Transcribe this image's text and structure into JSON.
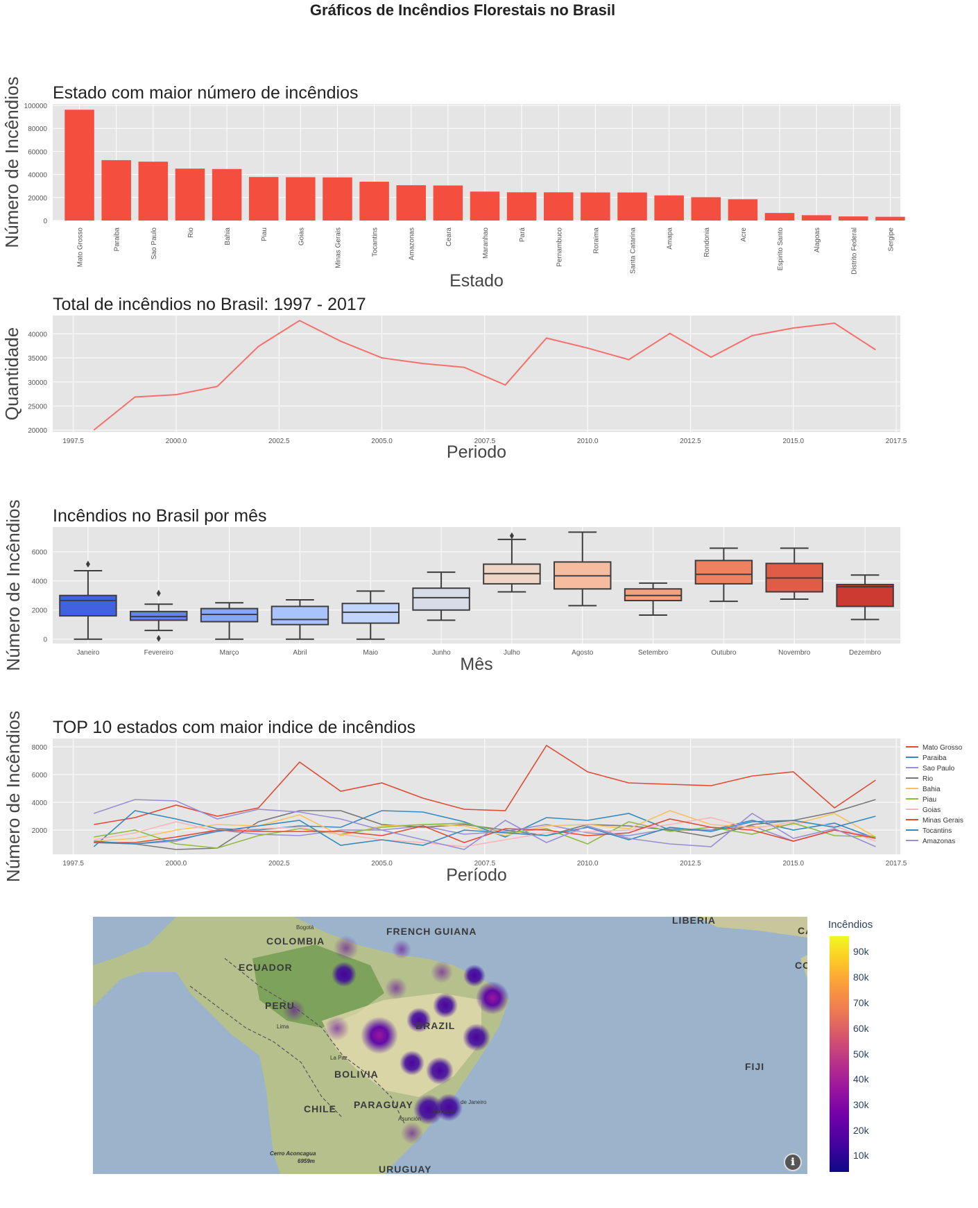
{
  "page": {
    "suptitle": "Gráficos de Incêndios Florestais no Brasil"
  },
  "chart_data": [
    {
      "type": "bar",
      "title": "Estado com maior número de incêndios",
      "xlabel": "Estado",
      "ylabel": "Número de Incêndios",
      "ylim": [
        0,
        100000
      ],
      "yticks": [
        0,
        20000,
        40000,
        60000,
        80000,
        100000
      ],
      "color": "#f44e3f",
      "categories": [
        "Mato Grosso",
        "Paraiba",
        "Sao Paulo",
        "Rio",
        "Bahia",
        "Piau",
        "Goias",
        "Minas Gerais",
        "Tocantins",
        "Amazonas",
        "Ceara",
        "Maranhao",
        "Pará",
        "Pernambuco",
        "Roraima",
        "Santa Catarina",
        "Amapa",
        "Rondonia",
        "Acre",
        "Espirito Santo",
        "Alagoas",
        "Distrito Federal",
        "Sergipe"
      ],
      "values": [
        96246,
        52436,
        51122,
        45094,
        44746,
        37803,
        37641,
        37476,
        33708,
        30650,
        30429,
        25130,
        24512,
        24498,
        24386,
        24360,
        21832,
        20239,
        18465,
        6547,
        4606,
        3562,
        3238
      ]
    },
    {
      "type": "line",
      "title": "Total de incêndios no Brasil: 1997 - 2017",
      "xlabel": "Periodo",
      "ylabel": "Quantidade",
      "xlim": [
        1997.0,
        2017.6
      ],
      "ylim": [
        19600,
        43800
      ],
      "xticks": [
        "1997.5",
        "2000.0",
        "2002.5",
        "2005.0",
        "2007.5",
        "2010.0",
        "2012.5",
        "2015.0",
        "2017.5"
      ],
      "yticks": [
        20000,
        25000,
        30000,
        35000,
        40000
      ],
      "color": "#f5706a",
      "x": [
        1998,
        1999,
        2000,
        2001,
        2002,
        2003,
        2004,
        2005,
        2006,
        2007,
        2008,
        2009,
        2010,
        2011,
        2012,
        2013,
        2014,
        2015,
        2016,
        2017
      ],
      "y": [
        20014,
        26883,
        27352,
        29071,
        37391,
        42760,
        38454,
        35004,
        33832,
        33037,
        29379,
        39117,
        37037,
        34634,
        40084,
        35146,
        39621,
        41208,
        42212,
        36685
      ]
    },
    {
      "type": "box",
      "title": "Incêndios no Brasil por mês",
      "xlabel": "Mês",
      "ylabel": "Número de Incêndios",
      "ylim": [
        -300,
        7700
      ],
      "yticks": [
        0,
        2000,
        4000,
        6000
      ],
      "categories": [
        "Janeiro",
        "Fevereiro",
        "Março",
        "Abril",
        "Maio",
        "Junho",
        "Julho",
        "Agosto",
        "Setembro",
        "Outubro",
        "Novembro",
        "Dezembro"
      ],
      "colors": [
        "#4062e0",
        "#6283f0",
        "#86a8fc",
        "#a9c4fd",
        "#c1d4fb",
        "#d8dce9",
        "#efd5c5",
        "#f5bca0",
        "#f6a07f",
        "#ee815f",
        "#e15c46",
        "#cc3a32"
      ],
      "stats": [
        {
          "min": 0,
          "q1": 1600,
          "median": 2650,
          "q3": 3000,
          "max": 4700,
          "outliers": [
            5150
          ]
        },
        {
          "min": 600,
          "q1": 1300,
          "median": 1550,
          "q3": 1900,
          "max": 2400,
          "outliers": [
            3150,
            50
          ]
        },
        {
          "min": 0,
          "q1": 1200,
          "median": 1700,
          "q3": 2100,
          "max": 2500,
          "outliers": []
        },
        {
          "min": 0,
          "q1": 1000,
          "median": 1350,
          "q3": 2250,
          "max": 2700,
          "outliers": []
        },
        {
          "min": 0,
          "q1": 1100,
          "median": 1850,
          "q3": 2450,
          "max": 3300,
          "outliers": []
        },
        {
          "min": 1300,
          "q1": 2000,
          "median": 2850,
          "q3": 3500,
          "max": 4600,
          "outliers": []
        },
        {
          "min": 3250,
          "q1": 3800,
          "median": 4500,
          "q3": 5150,
          "max": 6850,
          "outliers": [
            7100
          ]
        },
        {
          "min": 2300,
          "q1": 3450,
          "median": 4350,
          "q3": 5300,
          "max": 7350,
          "outliers": []
        },
        {
          "min": 1650,
          "q1": 2650,
          "median": 3000,
          "q3": 3450,
          "max": 3850,
          "outliers": []
        },
        {
          "min": 2600,
          "q1": 3800,
          "median": 4450,
          "q3": 5400,
          "max": 6250,
          "outliers": []
        },
        {
          "min": 2750,
          "q1": 3250,
          "median": 4200,
          "q3": 5200,
          "max": 6250,
          "outliers": []
        },
        {
          "min": 1350,
          "q1": 2250,
          "median": 3600,
          "q3": 3750,
          "max": 4400,
          "outliers": []
        }
      ]
    },
    {
      "type": "line",
      "title": "TOP 10 estados com maior indice de incêndios",
      "xlabel": "Período",
      "ylabel": "Número de Incêndios",
      "xlim": [
        1997.0,
        2017.6
      ],
      "ylim": [
        250,
        8600
      ],
      "xticks": [
        "1997.5",
        "2000.0",
        "2002.5",
        "2005.0",
        "2007.5",
        "2010.0",
        "2012.5",
        "2015.0",
        "2017.5"
      ],
      "yticks": [
        2000,
        4000,
        6000,
        8000
      ],
      "legend_position": "right",
      "x": [
        1998,
        1999,
        2000,
        2001,
        2002,
        2003,
        2004,
        2005,
        2006,
        2007,
        2008,
        2009,
        2010,
        2011,
        2012,
        2013,
        2014,
        2015,
        2016,
        2017
      ],
      "series": [
        {
          "name": "Mato Grosso",
          "color": "#e24a33",
          "values": [
            2400,
            2900,
            3800,
            3000,
            3600,
            6900,
            4800,
            5400,
            4300,
            3500,
            3400,
            8100,
            6200,
            5400,
            5300,
            5200,
            5900,
            6200,
            3600,
            5600
          ]
        },
        {
          "name": "Paraiba",
          "color": "#348abd",
          "values": [
            800,
            3400,
            2800,
            2100,
            2000,
            2300,
            2200,
            3400,
            3300,
            2600,
            1500,
            2900,
            2700,
            3200,
            2000,
            2000,
            2700,
            2000,
            2500,
            1400
          ]
        },
        {
          "name": "Sao Paulo",
          "color": "#988ed5",
          "values": [
            1100,
            1000,
            1200,
            2000,
            1700,
            1600,
            2000,
            2000,
            2300,
            1700,
            1900,
            2400,
            1800,
            1600,
            2100,
            2000,
            2300,
            1200,
            2000,
            1500
          ]
        },
        {
          "name": "Rio",
          "color": "#777777",
          "values": [
            1100,
            1000,
            600,
            700,
            2600,
            3400,
            3400,
            2400,
            2200,
            2400,
            2000,
            1600,
            2400,
            2300,
            2000,
            1500,
            2400,
            2700,
            3300,
            4200
          ]
        },
        {
          "name": "Bahia",
          "color": "#fbc15e",
          "values": [
            1200,
            1400,
            2000,
            2400,
            2300,
            3100,
            1600,
            2300,
            2400,
            2300,
            1600,
            2300,
            2400,
            2100,
            3400,
            2400,
            2200,
            2400,
            3200,
            1500
          ]
        },
        {
          "name": "Piau",
          "color": "#8eba42",
          "values": [
            1500,
            2000,
            1000,
            700,
            1600,
            2100,
            1700,
            2200,
            2400,
            2500,
            1800,
            2100,
            1000,
            2600,
            1900,
            2200,
            1700,
            2500,
            1600,
            1500
          ]
        },
        {
          "name": "Goias",
          "color": "#ffb5b8",
          "values": [
            1300,
            1800,
            2600,
            1900,
            2100,
            2200,
            1700,
            1300,
            1100,
            800,
            1300,
            1800,
            1900,
            2000,
            2400,
            2900,
            2100,
            2600,
            2300,
            1200
          ]
        },
        {
          "name": "Minas Gerais",
          "color": "#e24a33",
          "values": [
            1100,
            1100,
            1500,
            2000,
            1900,
            1900,
            1900,
            1600,
            2300,
            1100,
            2100,
            2000,
            1600,
            1800,
            2800,
            2200,
            2000,
            1200,
            2000,
            1400
          ]
        },
        {
          "name": "Tocantins",
          "color": "#348abd",
          "values": [
            1200,
            1000,
            1300,
            1900,
            2300,
            2700,
            900,
            1300,
            900,
            2000,
            1800,
            1600,
            2200,
            1300,
            2200,
            1900,
            2600,
            2700,
            2200,
            3000
          ]
        },
        {
          "name": "Amazonas",
          "color": "#988ed5",
          "values": [
            3200,
            4200,
            4100,
            2800,
            3500,
            3300,
            2800,
            2000,
            1300,
            600,
            2700,
            1100,
            2300,
            1400,
            1000,
            800,
            3200,
            1400,
            2100,
            800
          ]
        }
      ]
    }
  ],
  "map": {
    "colorbar_title": "Incêndios",
    "colorbar_ticks": [
      "90k",
      "80k",
      "70k",
      "60k",
      "50k",
      "40k",
      "30k",
      "20k",
      "10k"
    ],
    "country_labels": [
      "COLOMBIA",
      "FRENCH GUIANA",
      "ECUADOR",
      "PERU",
      "BRAZIL",
      "BOLIVIA",
      "CHILE",
      "PARAGUAY",
      "URUGUAY",
      "LIBERIA",
      "FIJI",
      "CA",
      "CO"
    ],
    "city_labels": [
      "Bogotá",
      "Lima",
      "La Paz",
      "Asunción",
      "São Paulo",
      "de Janeiro",
      "Cerro Aconcagua",
      "6959m"
    ],
    "info_icon": "ℹ"
  }
}
